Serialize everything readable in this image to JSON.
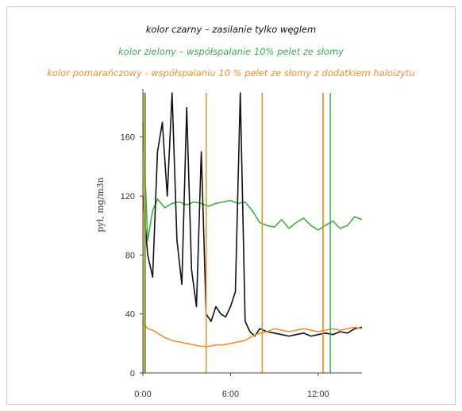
{
  "chart_data": {
    "type": "line",
    "legend": [
      {
        "text": "kolor czarny – zasilanie tylko węglem",
        "color": "#111111"
      },
      {
        "text": "kolor zielony – współspalanie 10% pelet ze słomy",
        "color": "#3fae45"
      },
      {
        "text": "kolor pomarańczowy - współspalaniu 10 % pelet ze słomy z dodatkiem haloizytu",
        "color": "#f0902c"
      }
    ],
    "ylabel": "pył, mg/m3n",
    "ylim": [
      0,
      190
    ],
    "yticks": [
      0,
      40,
      80,
      120,
      160
    ],
    "xlim": [
      "0:00",
      "15:00"
    ],
    "xticks": [
      "0:00",
      "6:00",
      "12:00"
    ],
    "grid": false,
    "series": [
      {
        "color": "#111111",
        "x": [
          "0:00",
          "0:20",
          "0:40",
          "1:00",
          "1:20",
          "1:40",
          "2:00",
          "2:20",
          "2:40",
          "3:00",
          "3:20",
          "3:40",
          "4:00",
          "4:20",
          "4:40",
          "5:00",
          "5:20",
          "5:40",
          "6:00",
          "6:20",
          "6:40",
          "7:00",
          "7:20",
          "7:40",
          "8:00",
          "8:30",
          "9:00",
          "9:30",
          "10:00",
          "10:30",
          "11:00",
          "11:30",
          "12:00",
          "12:30",
          "13:00",
          "13:30",
          "14:00",
          "14:30",
          "15:00"
        ],
        "y": [
          120,
          80,
          65,
          150,
          170,
          120,
          190,
          90,
          60,
          180,
          70,
          45,
          150,
          40,
          35,
          45,
          40,
          38,
          45,
          55,
          190,
          35,
          28,
          25,
          30,
          28,
          27,
          26,
          25,
          26,
          27,
          25,
          26,
          27,
          26,
          28,
          27,
          30,
          31
        ]
      },
      {
        "color": "#3fae45",
        "x": [
          "0:00",
          "0:20",
          "0:40",
          "1:00",
          "1:30",
          "2:00",
          "2:30",
          "3:00",
          "3:30",
          "4:00",
          "4:30",
          "5:00",
          "5:30",
          "6:00",
          "6:30",
          "7:00",
          "7:30",
          "8:00",
          "8:30",
          "9:00",
          "9:30",
          "10:00",
          "10:30",
          "11:00",
          "11:30",
          "12:00",
          "12:30",
          "13:00",
          "13:30",
          "14:00",
          "14:30",
          "15:00"
        ],
        "y": [
          170,
          90,
          110,
          118,
          112,
          115,
          116,
          114,
          116,
          115,
          113,
          115,
          116,
          117,
          115,
          116,
          110,
          102,
          100,
          99,
          104,
          98,
          102,
          105,
          100,
          97,
          100,
          103,
          98,
          100,
          106,
          104
        ]
      },
      {
        "color": "#f0902c",
        "x": [
          "0:00",
          "0:20",
          "0:40",
          "1:00",
          "1:30",
          "2:00",
          "2:30",
          "3:00",
          "3:30",
          "4:00",
          "4:30",
          "5:00",
          "5:30",
          "6:00",
          "6:30",
          "7:00",
          "7:30",
          "8:00",
          "8:30",
          "9:00",
          "9:30",
          "10:00",
          "10:30",
          "11:00",
          "11:30",
          "12:00",
          "12:30",
          "13:00",
          "13:30",
          "14:00",
          "14:30",
          "15:00"
        ],
        "y": [
          34,
          30,
          29,
          27,
          24,
          22,
          21,
          20,
          19,
          18,
          18,
          19,
          19,
          20,
          21,
          22,
          25,
          27,
          28,
          30,
          29,
          28,
          29,
          30,
          29,
          28,
          29,
          30,
          29,
          30,
          31,
          30
        ]
      }
    ],
    "spikes": [
      {
        "color": "#3fae45",
        "x": [
          "0:10",
          "4:20",
          "8:10",
          "12:20",
          "12:50"
        ]
      },
      {
        "color": "#f0902c",
        "x": [
          "0:05",
          "4:20",
          "8:10",
          "12:20"
        ]
      }
    ]
  }
}
